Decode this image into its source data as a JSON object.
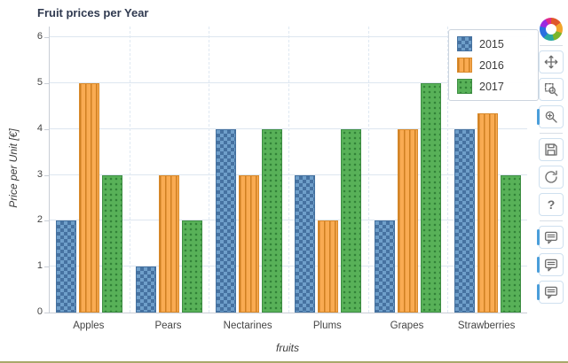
{
  "title": "Fruit prices per Year",
  "chart_data": {
    "type": "bar",
    "title": "Fruit prices per Year",
    "xlabel": "fruits",
    "ylabel": "Price per Unit [€]",
    "ylim": [
      0,
      6
    ],
    "yticks": [
      0,
      1,
      2,
      3,
      4,
      5,
      6
    ],
    "grid": true,
    "legend_position": "top_right",
    "categories": [
      "Apples",
      "Pears",
      "Nectarines",
      "Plums",
      "Grapes",
      "Strawberries"
    ],
    "series": [
      {
        "name": "2015",
        "color": "#6f9fca",
        "border": "#44719f",
        "hatch": "checker",
        "values": [
          2,
          1,
          4,
          3,
          2,
          4
        ]
      },
      {
        "name": "2016",
        "color": "#f9ab52",
        "border": "#d98a2b",
        "hatch": "vertical-stripes",
        "values": [
          5,
          3,
          3,
          2,
          4,
          4.35
        ]
      },
      {
        "name": "2017",
        "color": "#58b158",
        "border": "#3f8f44",
        "hatch": "dots",
        "values": [
          3,
          2,
          4,
          4,
          5,
          3
        ]
      }
    ]
  },
  "toolbar": {
    "tools": [
      "pan",
      "box_zoom",
      "wheel_zoom",
      "save",
      "reset",
      "help",
      "hover",
      "hover",
      "hover"
    ],
    "help_glyph": "?"
  }
}
